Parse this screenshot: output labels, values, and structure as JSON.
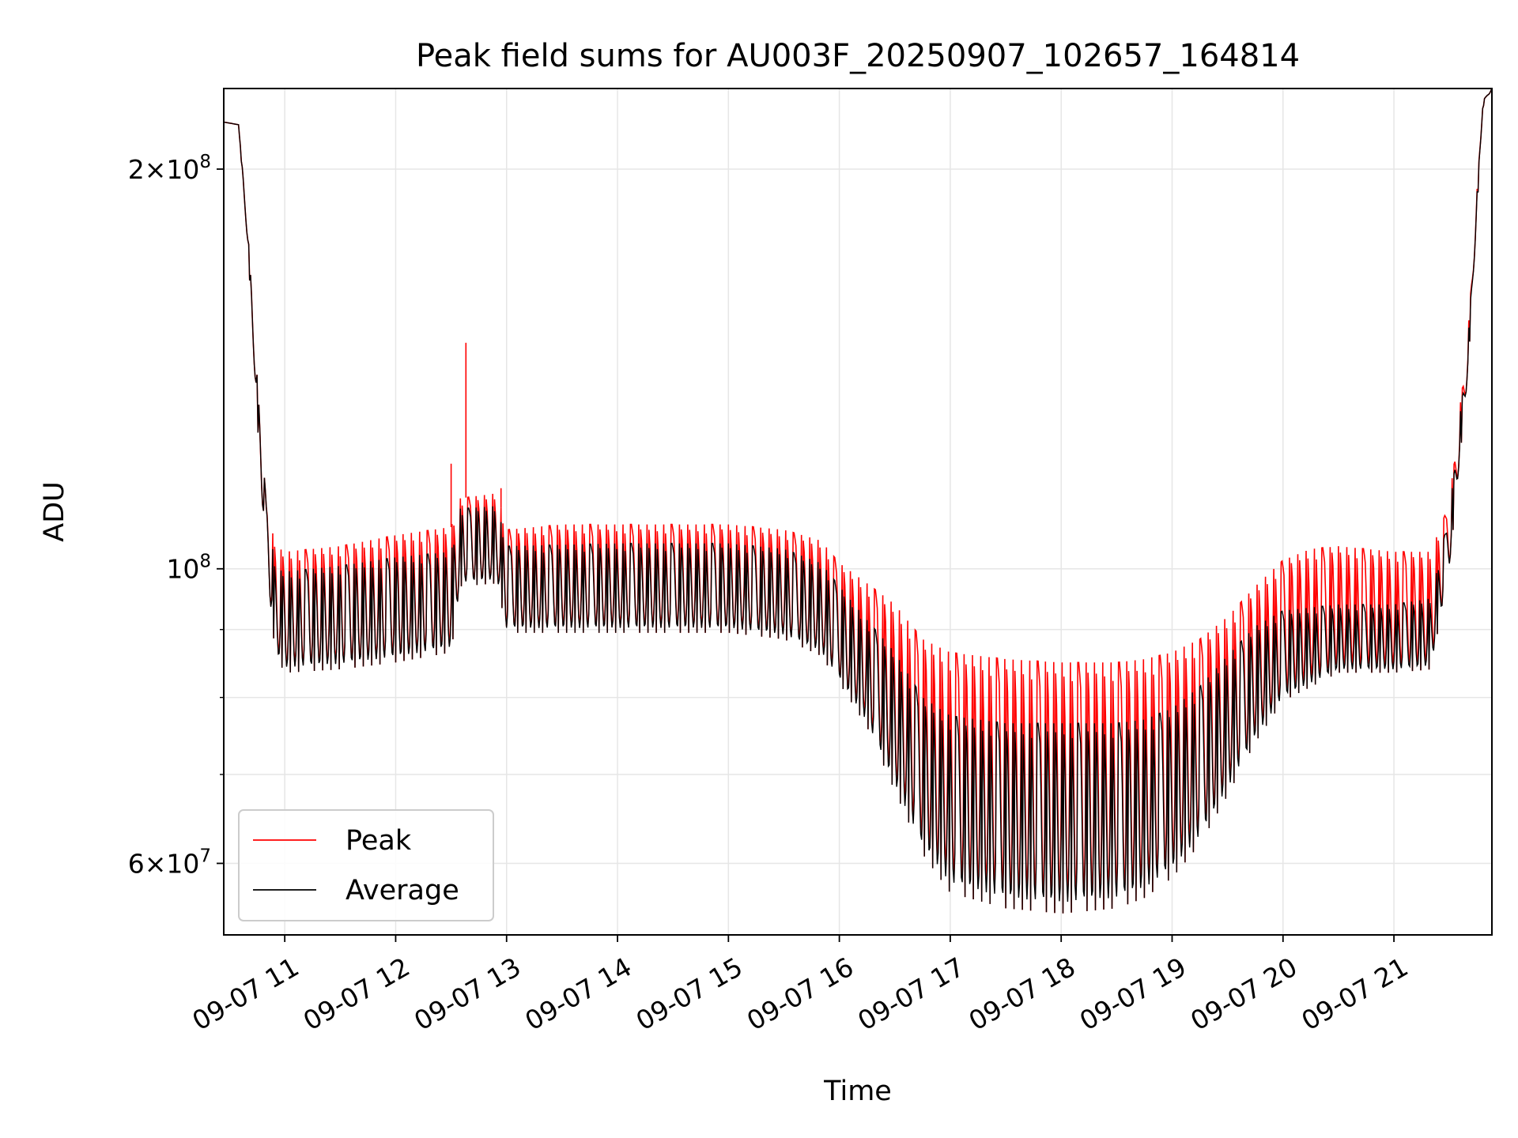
{
  "chart_data": {
    "type": "line",
    "title": "Peak field sums for AU003F_20250907_102657_164814",
    "xlabel": "Time",
    "ylabel": "ADU",
    "yscale": "log",
    "grid": true,
    "legend_position": "lower-left",
    "xlim": [
      "2025-09-07 10:27",
      "2025-09-07 21:53"
    ],
    "ylim": [
      53000000,
      230000000
    ],
    "x_ticks": [
      "2025-09-07 11:00",
      "2025-09-07 12:00",
      "2025-09-07 13:00",
      "2025-09-07 14:00",
      "2025-09-07 15:00",
      "2025-09-07 16:00",
      "2025-09-07 17:00",
      "2025-09-07 18:00",
      "2025-09-07 19:00",
      "2025-09-07 20:00",
      "2025-09-07 21:00"
    ],
    "x_tick_labels": [
      "09-07 11",
      "09-07 12",
      "09-07 13",
      "09-07 14",
      "09-07 15",
      "09-07 16",
      "09-07 17",
      "09-07 18",
      "09-07 19",
      "09-07 20",
      "09-07 21"
    ],
    "y_major_ticks": [
      60000000,
      100000000,
      200000000
    ],
    "y_major_tick_labels": [
      {
        "mantissa": "6",
        "base": "10",
        "exp": "7"
      },
      {
        "mantissa": "",
        "base": "10",
        "exp": "8"
      },
      {
        "mantissa": "2",
        "base": "10",
        "exp": "8"
      }
    ],
    "y_minor_ticks": [
      70000000,
      80000000,
      90000000
    ],
    "series": [
      {
        "name": "Peak",
        "color": "#ff0000",
        "upper_envelope": [
          [
            "2025-09-07 10:27",
            217000000
          ],
          [
            "2025-09-07 10:35",
            216000000
          ],
          [
            "2025-09-07 10:40",
            180000000
          ],
          [
            "2025-09-07 10:45",
            140000000
          ],
          [
            "2025-09-07 10:50",
            112000000
          ],
          [
            "2025-09-07 10:55",
            104000000
          ],
          [
            "2025-09-07 11:00",
            103000000
          ],
          [
            "2025-09-07 11:30",
            104000000
          ],
          [
            "2025-09-07 12:00",
            106000000
          ],
          [
            "2025-09-07 12:30",
            107500000
          ],
          [
            "2025-09-07 12:35",
            113000000
          ],
          [
            "2025-09-07 12:55",
            114000000
          ],
          [
            "2025-09-07 13:00",
            107000000
          ],
          [
            "2025-09-07 13:30",
            108000000
          ],
          [
            "2025-09-07 14:00",
            108000000
          ],
          [
            "2025-09-07 15:00",
            108000000
          ],
          [
            "2025-09-07 15:30",
            107000000
          ],
          [
            "2025-09-07 15:50",
            105000000
          ],
          [
            "2025-09-07 16:00",
            101000000
          ],
          [
            "2025-09-07 16:15",
            97500000
          ],
          [
            "2025-09-07 16:30",
            94000000
          ],
          [
            "2025-09-07 16:45",
            88500000
          ],
          [
            "2025-09-07 17:00",
            86500000
          ],
          [
            "2025-09-07 17:30",
            85500000
          ],
          [
            "2025-09-07 18:00",
            85000000
          ],
          [
            "2025-09-07 18:30",
            85000000
          ],
          [
            "2025-09-07 18:45",
            85500000
          ],
          [
            "2025-09-07 19:00",
            86500000
          ],
          [
            "2025-09-07 19:15",
            88500000
          ],
          [
            "2025-09-07 19:30",
            92000000
          ],
          [
            "2025-09-07 19:45",
            97000000
          ],
          [
            "2025-09-07 20:00",
            101500000
          ],
          [
            "2025-09-07 20:15",
            103500000
          ],
          [
            "2025-09-07 20:30",
            104000000
          ],
          [
            "2025-09-07 21:00",
            103000000
          ],
          [
            "2025-09-07 21:20",
            103000000
          ],
          [
            "2025-09-07 21:30",
            112000000
          ],
          [
            "2025-09-07 21:40",
            150000000
          ],
          [
            "2025-09-07 21:48",
            225000000
          ],
          [
            "2025-09-07 21:53",
            230000000
          ]
        ],
        "spikes": [
          [
            "2025-09-07 12:30",
            120000000
          ],
          [
            "2025-09-07 12:38",
            148000000
          ],
          [
            "2025-09-07 12:57",
            115000000
          ]
        ]
      },
      {
        "name": "Average",
        "color": "#000000",
        "upper_envelope": [
          [
            "2025-09-07 10:27",
            217000000
          ],
          [
            "2025-09-07 10:35",
            216000000
          ],
          [
            "2025-09-07 10:40",
            180000000
          ],
          [
            "2025-09-07 10:45",
            140000000
          ],
          [
            "2025-09-07 10:50",
            112000000
          ],
          [
            "2025-09-07 10:55",
            100000000
          ],
          [
            "2025-09-07 11:00",
            99500000
          ],
          [
            "2025-09-07 11:30",
            100500000
          ],
          [
            "2025-09-07 12:00",
            102000000
          ],
          [
            "2025-09-07 12:30",
            103000000
          ],
          [
            "2025-09-07 12:35",
            111000000
          ],
          [
            "2025-09-07 12:55",
            111500000
          ],
          [
            "2025-09-07 13:00",
            104000000
          ],
          [
            "2025-09-07 14:00",
            104500000
          ],
          [
            "2025-09-07 15:00",
            104500000
          ],
          [
            "2025-09-07 15:30",
            103500000
          ],
          [
            "2025-09-07 15:50",
            101000000
          ],
          [
            "2025-09-07 16:00",
            97000000
          ],
          [
            "2025-09-07 16:15",
            91500000
          ],
          [
            "2025-09-07 16:30",
            86500000
          ],
          [
            "2025-09-07 16:45",
            80000000
          ],
          [
            "2025-09-07 17:00",
            77500000
          ],
          [
            "2025-09-07 17:30",
            76500000
          ],
          [
            "2025-09-07 18:00",
            76500000
          ],
          [
            "2025-09-07 18:30",
            76500000
          ],
          [
            "2025-09-07 18:45",
            77000000
          ],
          [
            "2025-09-07 19:00",
            78500000
          ],
          [
            "2025-09-07 19:15",
            81500000
          ],
          [
            "2025-09-07 19:30",
            86000000
          ],
          [
            "2025-09-07 19:45",
            90500000
          ],
          [
            "2025-09-07 20:00",
            93000000
          ],
          [
            "2025-09-07 20:30",
            94000000
          ],
          [
            "2025-09-07 21:00",
            94000000
          ],
          [
            "2025-09-07 21:20",
            95000000
          ],
          [
            "2025-09-07 21:30",
            110000000
          ],
          [
            "2025-09-07 21:40",
            148000000
          ],
          [
            "2025-09-07 21:48",
            225000000
          ],
          [
            "2025-09-07 21:53",
            230000000
          ]
        ],
        "lower_envelope": [
          [
            "2025-09-07 10:27",
            217000000
          ],
          [
            "2025-09-07 10:35",
            216000000
          ],
          [
            "2025-09-07 10:40",
            175000000
          ],
          [
            "2025-09-07 10:45",
            130000000
          ],
          [
            "2025-09-07 10:50",
            100000000
          ],
          [
            "2025-09-07 10:55",
            86000000
          ],
          [
            "2025-09-07 11:00",
            83500000
          ],
          [
            "2025-09-07 11:30",
            84000000
          ],
          [
            "2025-09-07 12:00",
            85000000
          ],
          [
            "2025-09-07 12:30",
            86500000
          ],
          [
            "2025-09-07 12:35",
            97000000
          ],
          [
            "2025-09-07 12:55",
            97500000
          ],
          [
            "2025-09-07 13:00",
            89500000
          ],
          [
            "2025-09-07 14:00",
            89500000
          ],
          [
            "2025-09-07 15:00",
            89500000
          ],
          [
            "2025-09-07 15:30",
            88500000
          ],
          [
            "2025-09-07 15:50",
            86000000
          ],
          [
            "2025-09-07 16:00",
            82000000
          ],
          [
            "2025-09-07 16:15",
            76000000
          ],
          [
            "2025-09-07 16:30",
            68000000
          ],
          [
            "2025-09-07 16:45",
            61000000
          ],
          [
            "2025-09-07 17:00",
            57000000
          ],
          [
            "2025-09-07 17:30",
            55500000
          ],
          [
            "2025-09-07 18:00",
            55000000
          ],
          [
            "2025-09-07 18:30",
            55500000
          ],
          [
            "2025-09-07 18:45",
            56500000
          ],
          [
            "2025-09-07 19:00",
            58500000
          ],
          [
            "2025-09-07 19:15",
            62000000
          ],
          [
            "2025-09-07 19:30",
            67500000
          ],
          [
            "2025-09-07 19:45",
            74000000
          ],
          [
            "2025-09-07 20:00",
            79500000
          ],
          [
            "2025-09-07 20:30",
            83500000
          ],
          [
            "2025-09-07 21:00",
            83500000
          ],
          [
            "2025-09-07 21:20",
            84000000
          ],
          [
            "2025-09-07 21:30",
            100000000
          ],
          [
            "2025-09-07 21:40",
            140000000
          ],
          [
            "2025-09-07 21:48",
            222000000
          ],
          [
            "2025-09-07 21:53",
            230000000
          ]
        ]
      }
    ]
  }
}
